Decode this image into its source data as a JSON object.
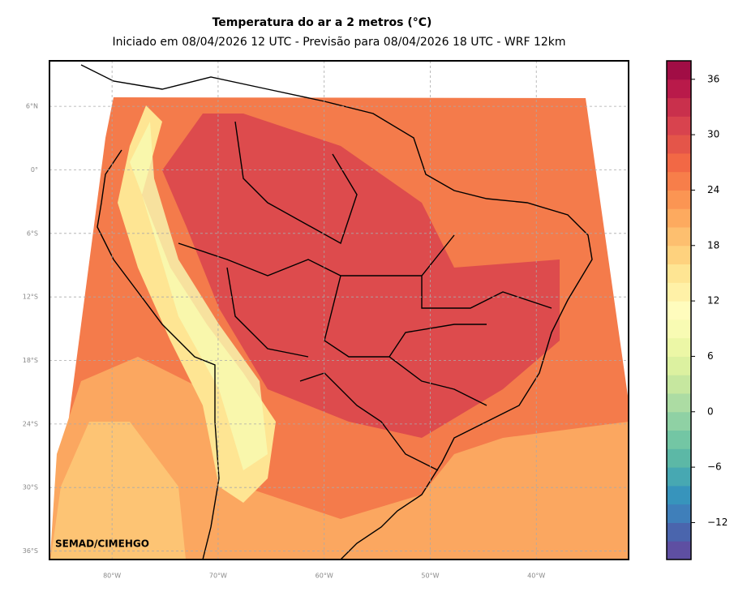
{
  "title": "Temperatura do ar a 2 metros (°C)",
  "subtitle": "Iniciado em 08/04/2026 12 UTC - Previsão para 08/04/2026 18 UTC - WRF 12km",
  "watermark": "SEMAD/CIMEHGO",
  "map": {
    "xlim": [
      -85.9,
      -31.3
    ],
    "ylim": [
      -36.8,
      10.3
    ],
    "grid": true,
    "xticks": [
      {
        "value": -80,
        "label": "80°W"
      },
      {
        "value": -70,
        "label": "70°W"
      },
      {
        "value": -60,
        "label": "60°W"
      },
      {
        "value": -50,
        "label": "50°W"
      },
      {
        "value": -40,
        "label": "40°W"
      }
    ],
    "yticks": [
      {
        "value": 6,
        "label": "6°N"
      },
      {
        "value": 0,
        "label": "0°"
      },
      {
        "value": -6,
        "label": "6°S"
      },
      {
        "value": -12,
        "label": "12°S"
      },
      {
        "value": -18,
        "label": "18°S"
      },
      {
        "value": -24,
        "label": "24°S"
      },
      {
        "value": -30,
        "label": "30°S"
      },
      {
        "value": -36,
        "label": "36°S"
      }
    ]
  },
  "colorbar": {
    "clim": [
      -16,
      38
    ],
    "colors": [
      "#5e4fa2",
      "#4a65ad",
      "#3f7fba",
      "#3794bc",
      "#47a8b2",
      "#5cb8a6",
      "#73c6a4",
      "#8fd1a4",
      "#acdca3",
      "#c6e79f",
      "#dcf1a0",
      "#ecf7a6",
      "#f8fbb3",
      "#fffcbd",
      "#fff1a7",
      "#fee593",
      "#fed27e",
      "#fdbf6f",
      "#fdaa5f",
      "#fb9553",
      "#f77e4a",
      "#f26845",
      "#e45549",
      "#d8434e",
      "#c9304c",
      "#b91a4a",
      "#a10d45"
    ],
    "ticks": [
      {
        "value": -12,
        "label": "−12"
      },
      {
        "value": -6,
        "label": "−6"
      },
      0,
      6,
      12,
      18,
      24,
      30,
      36
    ]
  }
}
